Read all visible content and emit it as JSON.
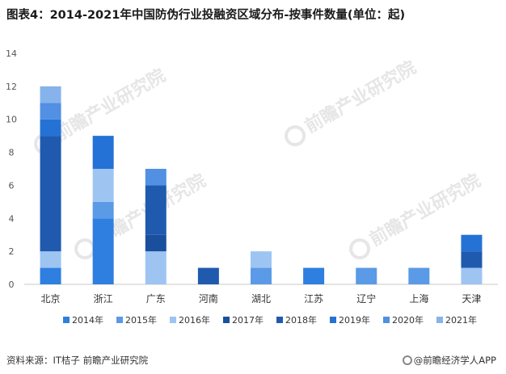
{
  "title": "图表4：2014-2021年中国防伪行业投融资区域分布-按事件数量(单位：起)",
  "watermark": "前瞻产业研究院",
  "footer": {
    "source": "资料来源：IT桔子 前瞻产业研究院",
    "brand": "@前瞻经济学人APP"
  },
  "chart_data": {
    "type": "bar",
    "stacked": true,
    "categories": [
      "北京",
      "浙江",
      "广东",
      "河南",
      "湖北",
      "江苏",
      "辽宁",
      "上海",
      "天津"
    ],
    "series": [
      {
        "name": "2014年",
        "color": "#2e7fe0",
        "values": [
          1,
          4,
          0,
          0,
          0,
          1,
          0,
          0,
          0
        ]
      },
      {
        "name": "2015年",
        "color": "#5a9ae6",
        "values": [
          0,
          1,
          0,
          0,
          1,
          0,
          1,
          1,
          0
        ]
      },
      {
        "name": "2016年",
        "color": "#9ec4f2",
        "values": [
          1,
          2,
          2,
          0,
          1,
          0,
          0,
          0,
          1
        ]
      },
      {
        "name": "2017年",
        "color": "#1a4f9e",
        "values": [
          0,
          0,
          1,
          0,
          0,
          0,
          0,
          0,
          0
        ]
      },
      {
        "name": "2018年",
        "color": "#1f5aaf",
        "values": [
          7,
          0,
          3,
          1,
          0,
          0,
          0,
          0,
          1
        ]
      },
      {
        "name": "2019年",
        "color": "#2472d6",
        "values": [
          1,
          2,
          0,
          0,
          0,
          0,
          0,
          0,
          1
        ]
      },
      {
        "name": "2020年",
        "color": "#5190e2",
        "values": [
          1,
          0,
          1,
          0,
          0,
          0,
          0,
          0,
          0
        ]
      },
      {
        "name": "2021年",
        "color": "#86b3ec",
        "values": [
          1,
          0,
          0,
          0,
          0,
          0,
          0,
          0,
          0
        ]
      }
    ],
    "yticks": [
      "0",
      "2",
      "4",
      "6",
      "8",
      "10",
      "12",
      "14"
    ],
    "ylim": [
      0,
      14
    ],
    "grid": false,
    "legend": "bottom"
  }
}
